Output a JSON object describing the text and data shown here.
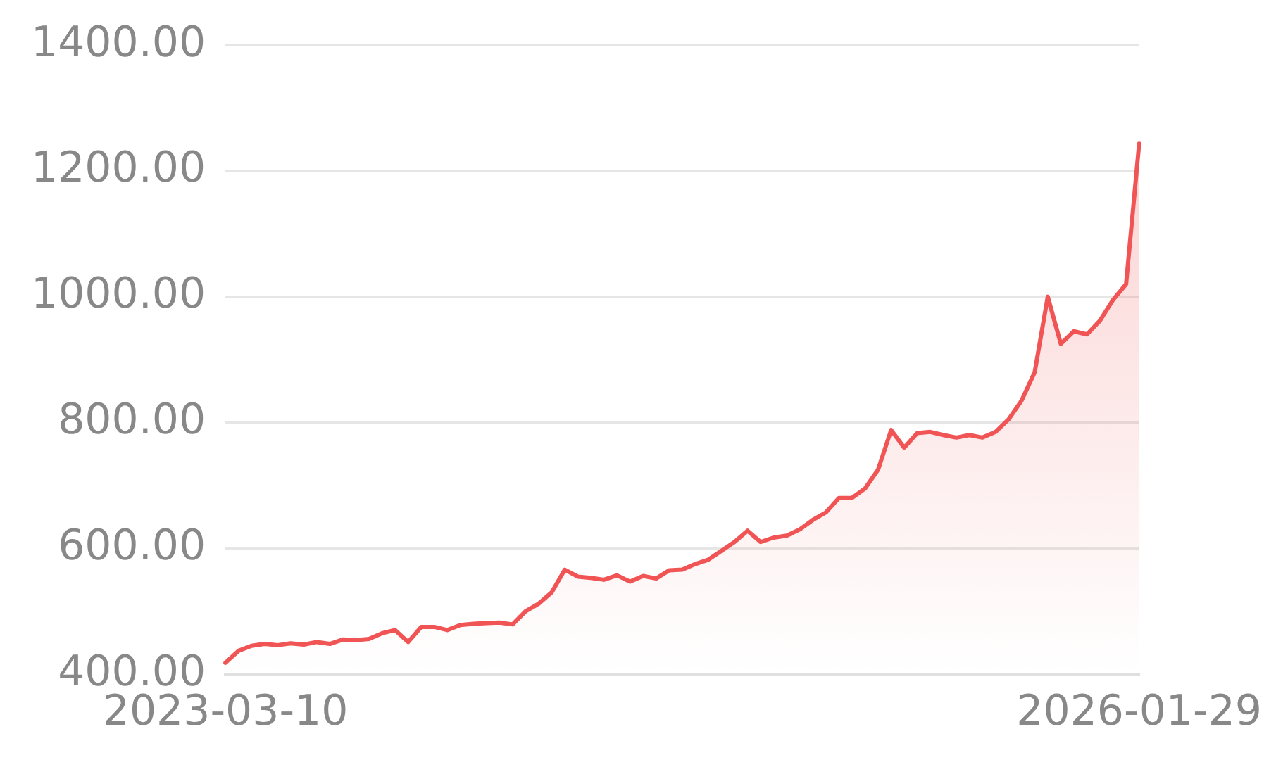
{
  "chart_data": {
    "type": "area",
    "categories": [
      "2023-03-10",
      null,
      null,
      null,
      null,
      null,
      null,
      null,
      null,
      null,
      null,
      null,
      null,
      null,
      null,
      null,
      null,
      null,
      null,
      null,
      null,
      null,
      null,
      null,
      null,
      null,
      null,
      null,
      null,
      null,
      null,
      null,
      null,
      null,
      null,
      null,
      null,
      null,
      null,
      null,
      null,
      null,
      null,
      null,
      null,
      null,
      null,
      null,
      null,
      null,
      null,
      null,
      null,
      null,
      null,
      null,
      null,
      null,
      null,
      null,
      null,
      null,
      null,
      null,
      null,
      null,
      null,
      null,
      null,
      null,
      "2026-01-29"
    ],
    "series": [
      {
        "color": "#f05454",
        "values": [
          418,
          437,
          445,
          448,
          446,
          449,
          447,
          451,
          448,
          455,
          454,
          456,
          465,
          470,
          451,
          475,
          475,
          470,
          478,
          480,
          481,
          482,
          479,
          500,
          512,
          530,
          566,
          555,
          553,
          550,
          557,
          547,
          556,
          552,
          565,
          566,
          575,
          582,
          596,
          610,
          628,
          610,
          617,
          620,
          630,
          645,
          657,
          680,
          680,
          695,
          725,
          788,
          760,
          783,
          785,
          780,
          776,
          780,
          776,
          785,
          805,
          835,
          880,
          1000,
          925,
          945,
          940,
          962,
          995,
          1020,
          1243
        ]
      }
    ],
    "ylim": [
      400,
      1400
    ],
    "yticks": [
      {
        "value": 400,
        "label": "400.00"
      },
      {
        "value": 600,
        "label": "600.00"
      },
      {
        "value": 800,
        "label": "800.00"
      },
      {
        "value": 1000,
        "label": "1000.00"
      },
      {
        "value": 1200,
        "label": "1200.00"
      },
      {
        "value": 1400,
        "label": "1400.00"
      }
    ],
    "grid": "y",
    "marker": "none",
    "line_style": "solid"
  }
}
